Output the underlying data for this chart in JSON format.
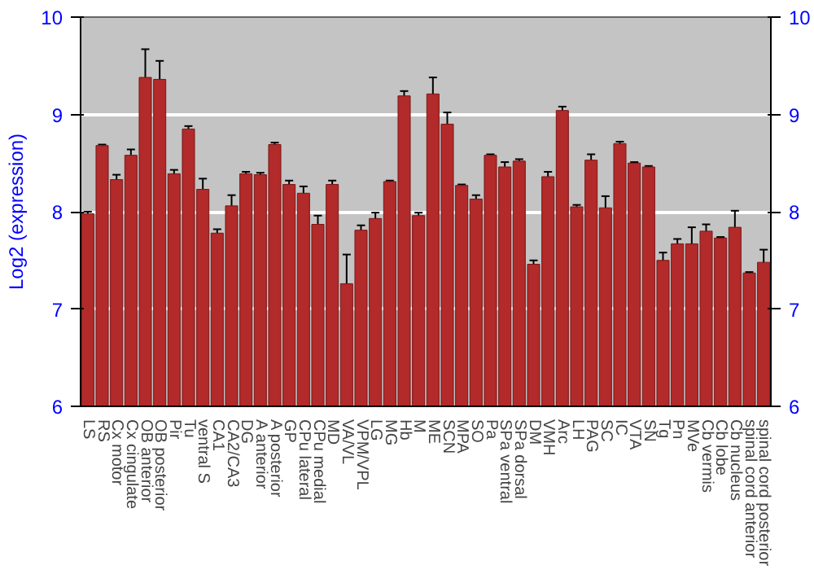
{
  "chart_data": {
    "type": "bar",
    "ylabel": "Log2 (expression)",
    "categories": [
      "LS",
      "RS",
      "Cx motor",
      "Cx cingulate",
      "OB anterior",
      "OB posterior",
      "Pir",
      "Tu",
      "ventral S",
      "CA1",
      "CA2/CA3",
      "DG",
      "A anterior",
      "A posterior",
      "GP",
      "CPu lateral",
      "CPu medial",
      "MD",
      "VA/VL",
      "VPM/VPL",
      "LG",
      "MG",
      "Hb",
      "M",
      "ME",
      "SCN",
      "MPA",
      "SO",
      "Pa",
      "SPa ventral",
      "SPa dorsal",
      "DM",
      "VMH",
      "Arc",
      "LH",
      "PAG",
      "SC",
      "IC",
      "VTA",
      "SN",
      "Tg",
      "Pn",
      "MVe",
      "Cb vermis",
      "Cb lobe",
      "Cb nucleus",
      "spinal cord anterior",
      "spinal cord posterior"
    ],
    "values": [
      7.98,
      8.68,
      8.33,
      8.58,
      9.38,
      9.36,
      8.39,
      8.85,
      8.23,
      7.78,
      8.06,
      8.39,
      8.38,
      8.69,
      8.28,
      8.19,
      7.87,
      8.28,
      7.26,
      7.81,
      7.93,
      8.31,
      9.19,
      7.96,
      9.21,
      8.9,
      8.27,
      8.13,
      8.58,
      8.46,
      8.52,
      7.46,
      8.36,
      9.04,
      8.05,
      8.53,
      8.04,
      8.7,
      8.5,
      8.46,
      7.5,
      7.67,
      7.67,
      7.8,
      7.73,
      7.84,
      7.37,
      7.48
    ],
    "errors": [
      0.02,
      0.01,
      0.05,
      0.06,
      0.29,
      0.19,
      0.04,
      0.03,
      0.11,
      0.04,
      0.11,
      0.02,
      0.02,
      0.02,
      0.04,
      0.07,
      0.09,
      0.04,
      0.3,
      0.05,
      0.06,
      0.01,
      0.05,
      0.03,
      0.17,
      0.12,
      0.01,
      0.04,
      0.01,
      0.05,
      0.02,
      0.04,
      0.05,
      0.04,
      0.02,
      0.06,
      0.12,
      0.02,
      0.01,
      0.01,
      0.08,
      0.05,
      0.17,
      0.07,
      0.01,
      0.17,
      0.01,
      0.13
    ],
    "color": "#b22a2a",
    "ylim": [
      6,
      10
    ],
    "yticks": [
      6,
      7,
      8,
      9,
      10
    ],
    "y2lim": [
      6,
      10
    ],
    "y2ticks": [
      6,
      7,
      8,
      9,
      10
    ],
    "grid": "y"
  }
}
